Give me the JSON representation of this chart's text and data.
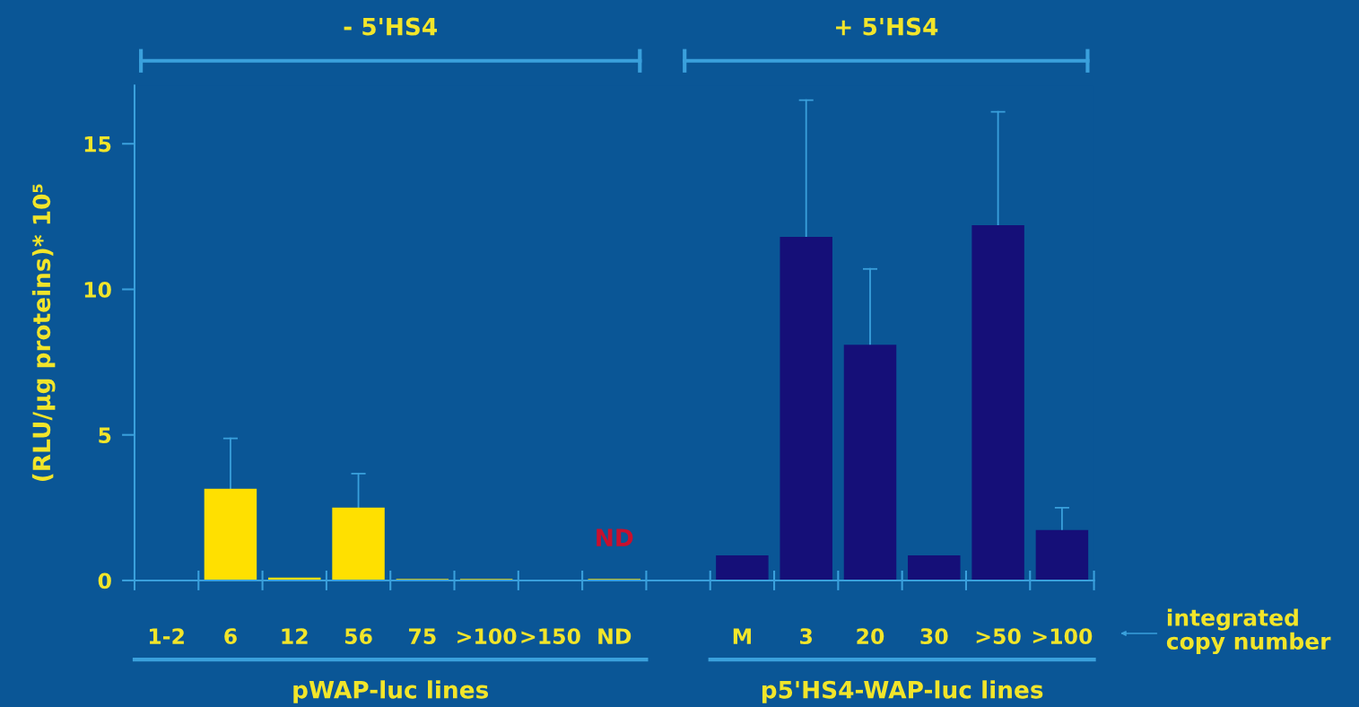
{
  "chart_data": {
    "type": "bar",
    "ylabel": "(RLU/µg proteins)* 10⁵",
    "categories": [
      "1-2",
      "6",
      "12",
      "56",
      "75",
      ">100",
      ">150",
      "ND",
      null,
      "M",
      "3",
      "20",
      "30",
      ">50",
      ">100"
    ],
    "values": [
      0,
      3.15,
      0.1,
      2.5,
      0.05,
      0.05,
      0,
      0.05,
      null,
      0.86,
      11.8,
      8.1,
      0.86,
      12.2,
      1.73
    ],
    "colors": [
      "#ffe000",
      "#ffe000",
      "#ffe000",
      "#ffe000",
      "#ffe000",
      "#ffe000",
      "#ffe000",
      "#ffe000",
      "#ffe000",
      "#150f78",
      "#150f78",
      "#150f78",
      "#150f78",
      "#150f78",
      "#150f78"
    ],
    "errors": [
      null,
      [
        3.15,
        4.88
      ],
      null,
      [
        2.5,
        3.67
      ],
      null,
      null,
      null,
      null,
      null,
      null,
      [
        11.8,
        16.5
      ],
      [
        8.1,
        10.7
      ],
      null,
      [
        12.2,
        16.1
      ],
      [
        1.73,
        2.5
      ]
    ],
    "ylim": [
      0,
      17
    ],
    "yticks": [
      0,
      5,
      10,
      15
    ],
    "grid": false,
    "annotations": [
      "- 5'HS4",
      "+ 5'HS4",
      "pWAP-luc lines",
      "p5'HS4-WAP-luc lines",
      "integrated copy number",
      "ND"
    ]
  }
}
